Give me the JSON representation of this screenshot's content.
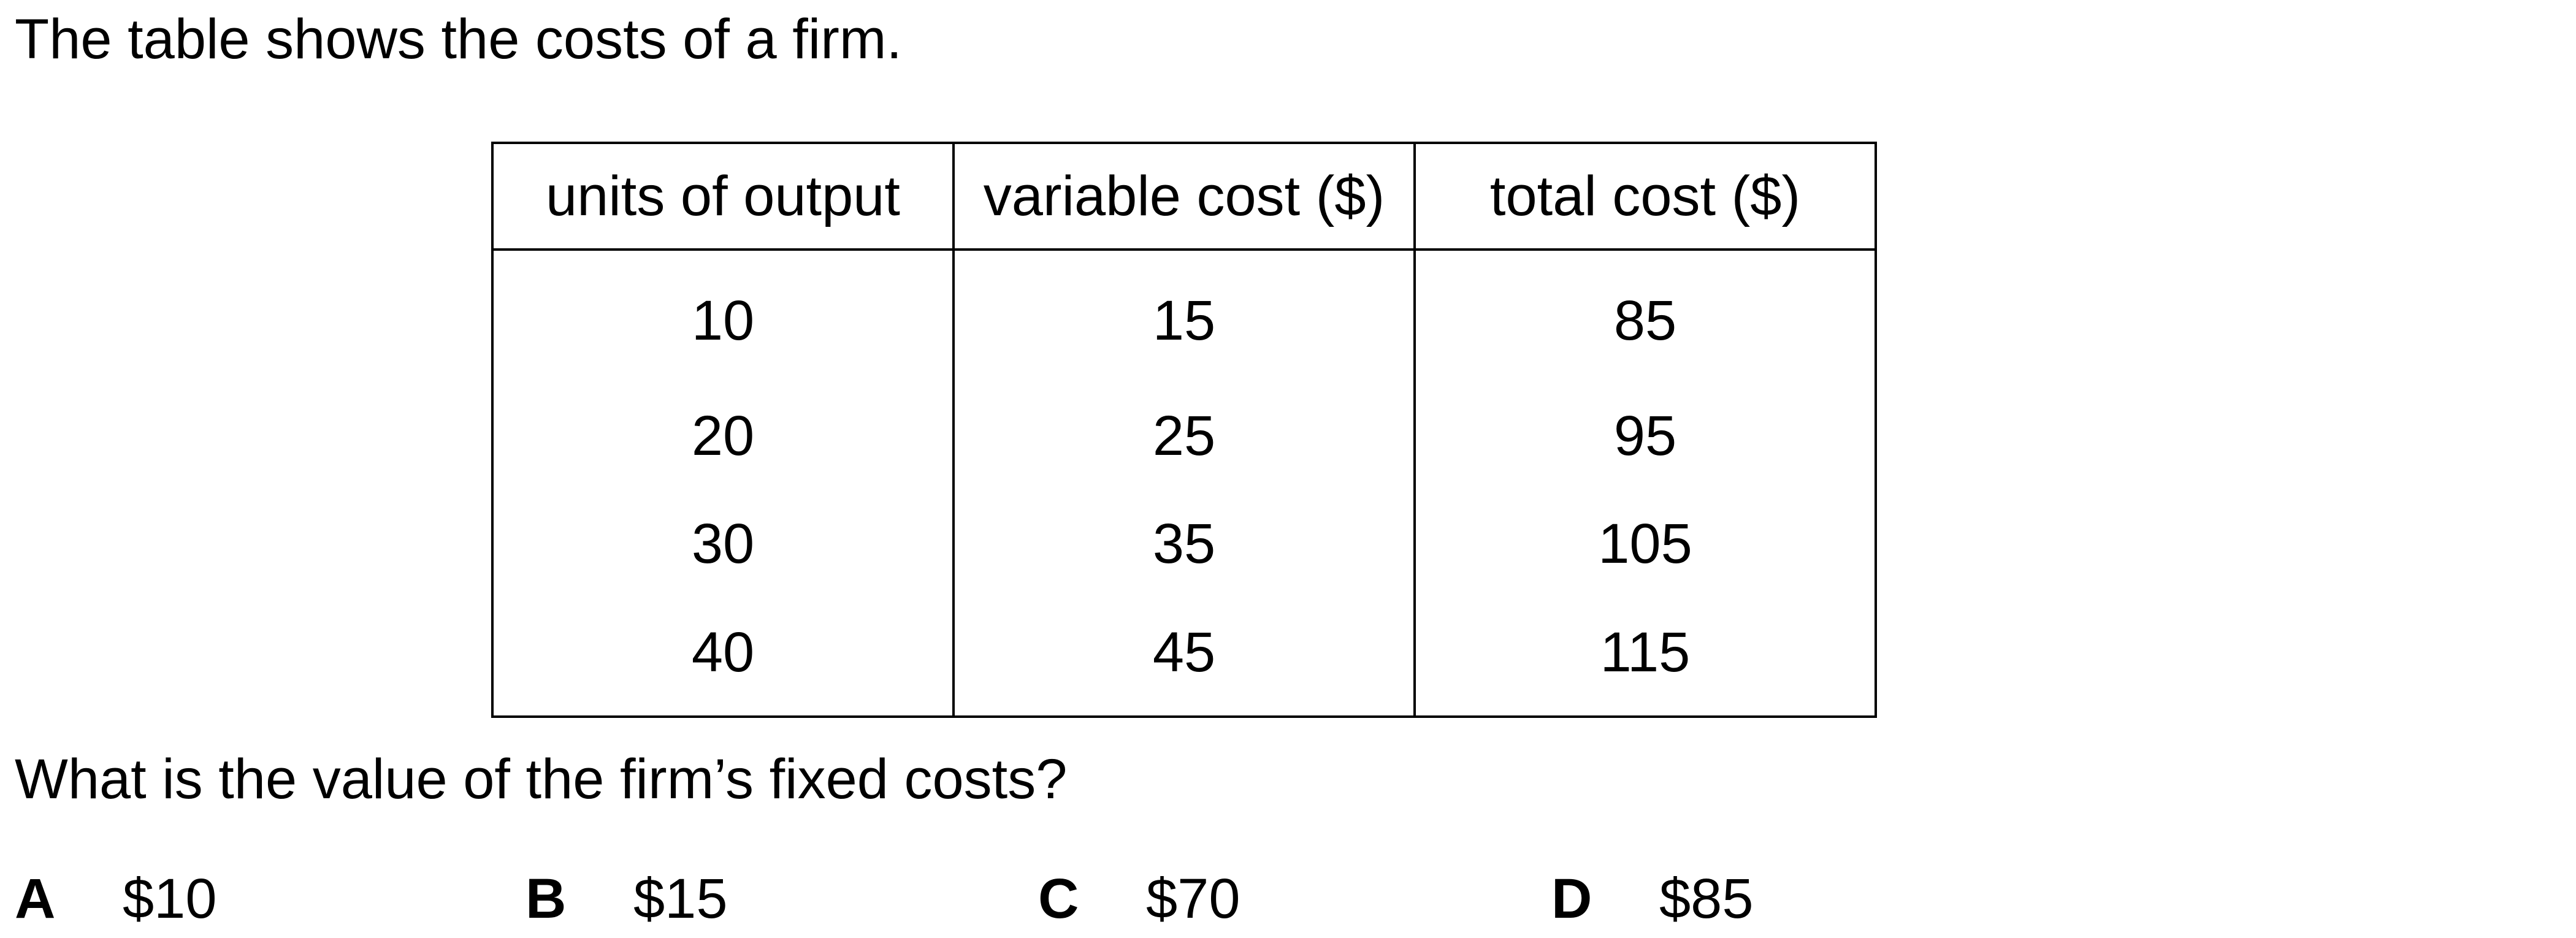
{
  "intro": "The table shows the costs of a firm.",
  "table": {
    "headers": [
      "units of output",
      "variable cost ($)",
      "total cost ($)"
    ],
    "rows": [
      [
        "10",
        "15",
        "85"
      ],
      [
        "20",
        "25",
        "95"
      ],
      [
        "30",
        "35",
        "105"
      ],
      [
        "40",
        "45",
        "115"
      ]
    ]
  },
  "question": "What is the value of the firm’s fixed costs?",
  "options": [
    {
      "letter": "A",
      "value": "$10"
    },
    {
      "letter": "B",
      "value": "$15"
    },
    {
      "letter": "C",
      "value": "$70"
    },
    {
      "letter": "D",
      "value": "$85"
    }
  ]
}
